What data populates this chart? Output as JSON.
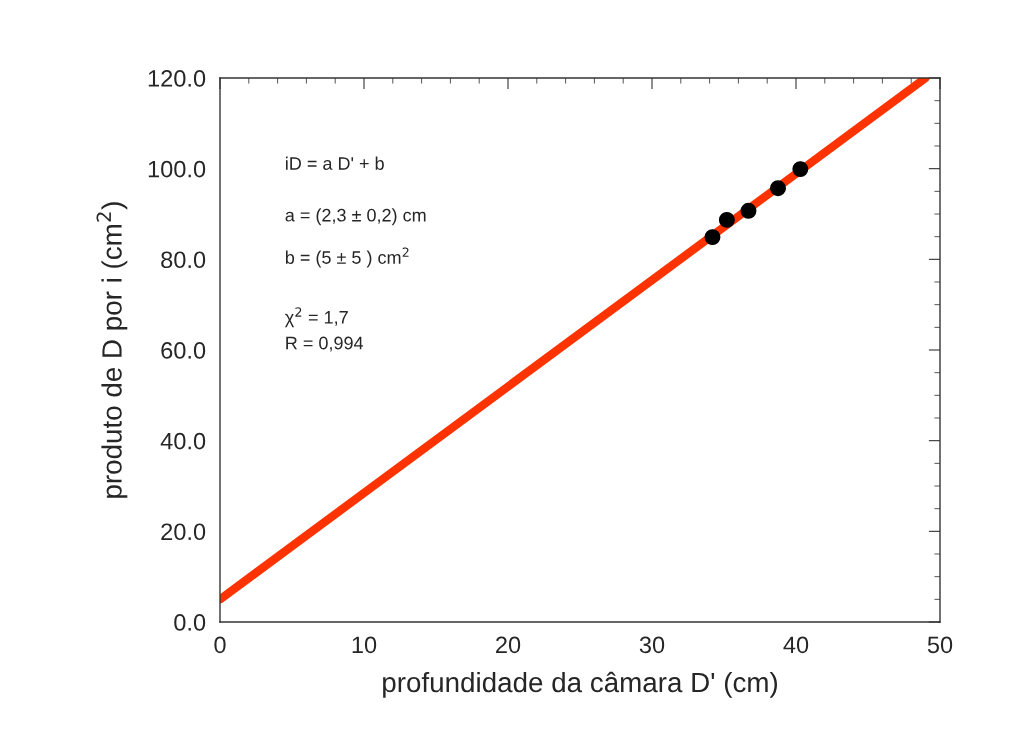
{
  "chart_data": {
    "type": "scatter",
    "xlabel": "profundidade da câmara D' (cm)",
    "ylabel": "produto de D por i (cm$^{2}$)",
    "xlim": [
      0,
      50
    ],
    "ylim": [
      0,
      120
    ],
    "xticks": [
      0,
      10,
      20,
      30,
      40,
      50
    ],
    "yticks": [
      {
        "value": 0,
        "label": "0.0"
      },
      {
        "value": 20,
        "label": "20.0"
      },
      {
        "value": 40,
        "label": "40.0"
      },
      {
        "value": 60,
        "label": "60.0"
      },
      {
        "value": 80,
        "label": "80.0"
      },
      {
        "value": 100,
        "label": "100.0"
      },
      {
        "value": 120,
        "label": "120.0"
      }
    ],
    "grid": false,
    "legend": false,
    "annotations": [
      "iD = a D' + b",
      "a = (2,3 ± 0,2) cm",
      "b = (5 ± 5 ) cm$^{2}$",
      "χ$^{2}$ = 1,7",
      "R = 0,994"
    ],
    "series": [
      {
        "type": "line",
        "color": "#ff3300",
        "x": [
          0,
          49
        ],
        "values": [
          5,
          120
        ],
        "marker": "none",
        "line_style": "solid"
      },
      {
        "color": "#000000",
        "x": [
          34.2,
          35.2,
          36.7,
          38.75,
          40.3
        ],
        "values": [
          84.9,
          88.7,
          90.7,
          95.7,
          99.9
        ],
        "marker": "circle"
      }
    ]
  }
}
